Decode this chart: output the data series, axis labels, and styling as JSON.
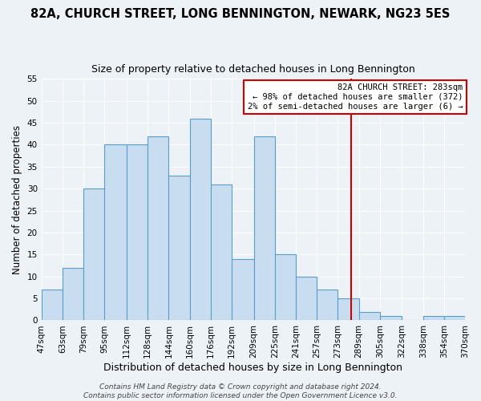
{
  "title": "82A, CHURCH STREET, LONG BENNINGTON, NEWARK, NG23 5ES",
  "subtitle": "Size of property relative to detached houses in Long Bennington",
  "xlabel": "Distribution of detached houses by size in Long Bennington",
  "ylabel": "Number of detached properties",
  "bin_edges": [
    47,
    63,
    79,
    95,
    112,
    128,
    144,
    160,
    176,
    192,
    209,
    225,
    241,
    257,
    273,
    289,
    305,
    322,
    338,
    354,
    370
  ],
  "counts": [
    7,
    12,
    30,
    40,
    40,
    42,
    33,
    46,
    31,
    14,
    42,
    15,
    10,
    7,
    5,
    2,
    1,
    0,
    1,
    1
  ],
  "bar_color": "#c8ddef",
  "bar_edgecolor": "#5a9dc8",
  "bar_linewidth": 0.8,
  "reference_line_x": 283,
  "reference_line_color": "#cc0000",
  "ylim": [
    0,
    55
  ],
  "yticks": [
    0,
    5,
    10,
    15,
    20,
    25,
    30,
    35,
    40,
    45,
    50,
    55
  ],
  "tick_labels": [
    "47sqm",
    "63sqm",
    "79sqm",
    "95sqm",
    "112sqm",
    "128sqm",
    "144sqm",
    "160sqm",
    "176sqm",
    "192sqm",
    "209sqm",
    "225sqm",
    "241sqm",
    "257sqm",
    "273sqm",
    "289sqm",
    "305sqm",
    "322sqm",
    "338sqm",
    "354sqm",
    "370sqm"
  ],
  "annotation_title": "82A CHURCH STREET: 283sqm",
  "annotation_line1": "← 98% of detached houses are smaller (372)",
  "annotation_line2": "2% of semi-detached houses are larger (6) →",
  "annotation_box_facecolor": "#ffffff",
  "annotation_box_edgecolor": "#cc0000",
  "footer_line1": "Contains HM Land Registry data © Crown copyright and database right 2024.",
  "footer_line2": "Contains public sector information licensed under the Open Government Licence v3.0.",
  "background_color": "#edf2f7",
  "grid_color": "#ffffff",
  "title_fontsize": 10.5,
  "subtitle_fontsize": 9,
  "ylabel_fontsize": 8.5,
  "xlabel_fontsize": 9,
  "tick_fontsize": 7.5,
  "footer_fontsize": 6.5
}
